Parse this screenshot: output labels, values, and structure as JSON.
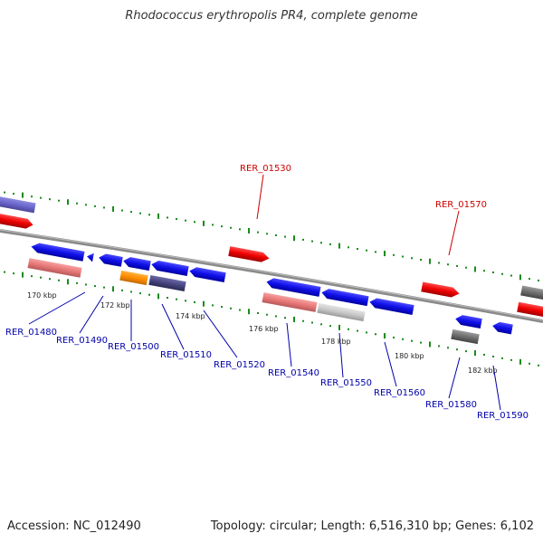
{
  "title": "Rhodococcus erythropolis PR4, complete genome",
  "footer": {
    "accession": "Accession: NC_012490",
    "topology": "Topology: circular; Length: 6,516,310 bp; Genes: 6,102"
  },
  "colors": {
    "forward_label": "#cc0000",
    "reverse_label": "#0000aa",
    "backbone": "#888888",
    "tick": "#1a8a1a"
  },
  "scale_labels": [
    "170 kbp",
    "172 kbp",
    "174 kbp",
    "176 kbp",
    "178 kbp",
    "180 kbp",
    "182 kbp"
  ],
  "genes_top": [
    {
      "id": "RER_01530",
      "label": "RER_01530"
    },
    {
      "id": "RER_01570",
      "label": "RER_01570"
    }
  ],
  "genes_bottom": [
    {
      "id": "RER_01480",
      "label": "RER_01480"
    },
    {
      "id": "RER_01490",
      "label": "RER_01490"
    },
    {
      "id": "RER_01500",
      "label": "RER_01500"
    },
    {
      "id": "RER_01510",
      "label": "RER_01510"
    },
    {
      "id": "RER_01520",
      "label": "RER_01520"
    },
    {
      "id": "RER_01540",
      "label": "RER_01540"
    },
    {
      "id": "RER_01550",
      "label": "RER_01550"
    },
    {
      "id": "RER_01560",
      "label": "RER_01560"
    },
    {
      "id": "RER_01580",
      "label": "RER_01580"
    },
    {
      "id": "RER_01590",
      "label": "RER_01590"
    }
  ]
}
